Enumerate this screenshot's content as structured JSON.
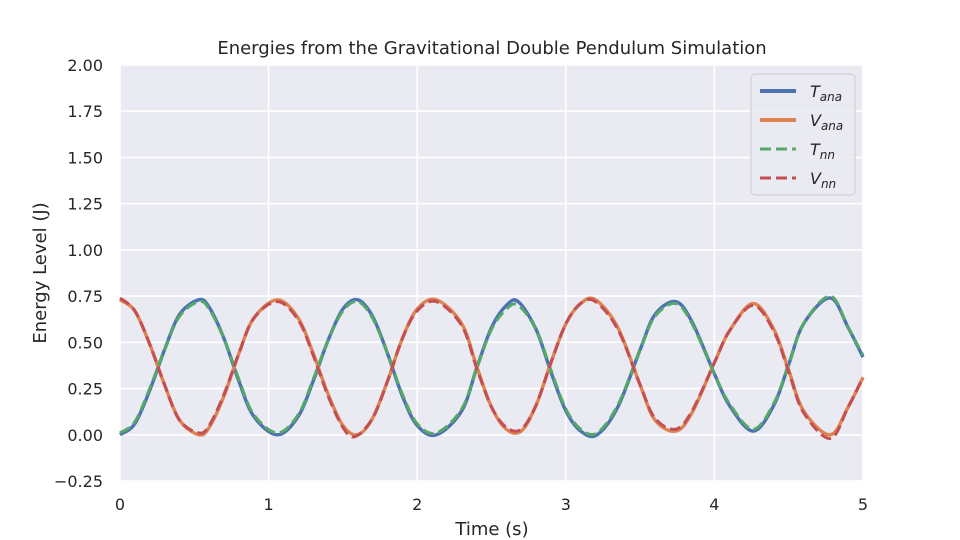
{
  "chart_data": {
    "type": "line",
    "title": "Energies from the Gravitational Double Pendulum Simulation",
    "xlabel": "Time (s)",
    "ylabel": "Energy Level (J)",
    "xlim": [
      0,
      5
    ],
    "ylim": [
      -0.25,
      2.0
    ],
    "x_ticks": [
      0,
      1,
      2,
      3,
      4,
      5
    ],
    "x_tick_labels": [
      "0",
      "1",
      "2",
      "3",
      "4",
      "5"
    ],
    "y_ticks": [
      -0.25,
      0.0,
      0.25,
      0.5,
      0.75,
      1.0,
      1.25,
      1.5,
      1.75,
      2.0
    ],
    "y_tick_labels": [
      "−0.25",
      "0.00",
      "0.25",
      "0.50",
      "0.75",
      "1.00",
      "1.25",
      "1.50",
      "1.75",
      "2.00"
    ],
    "grid": true,
    "legend_position": "top-right",
    "background_color": "#eaeaf2",
    "series": [
      {
        "name": "T_ana",
        "legend_main": "T",
        "legend_sub": "ana",
        "color": "#4c72b0",
        "style": "solid",
        "x": [
          0.0,
          0.1,
          0.2,
          0.3,
          0.4,
          0.53,
          0.6,
          0.7,
          0.8,
          0.9,
          1.06,
          1.2,
          1.3,
          1.4,
          1.5,
          1.6,
          1.7,
          1.8,
          1.9,
          2.0,
          2.13,
          2.3,
          2.4,
          2.5,
          2.6,
          2.68,
          2.8,
          2.9,
          3.0,
          3.1,
          3.21,
          3.35,
          3.5,
          3.6,
          3.74,
          3.85,
          4.0,
          4.1,
          4.26,
          4.4,
          4.5,
          4.6,
          4.78,
          4.9,
          5.0
        ],
        "y": [
          0.0,
          0.06,
          0.24,
          0.46,
          0.65,
          0.73,
          0.69,
          0.52,
          0.29,
          0.1,
          0.0,
          0.1,
          0.29,
          0.51,
          0.68,
          0.73,
          0.64,
          0.44,
          0.21,
          0.05,
          0.0,
          0.13,
          0.36,
          0.58,
          0.7,
          0.72,
          0.57,
          0.34,
          0.13,
          0.02,
          0.0,
          0.15,
          0.46,
          0.65,
          0.72,
          0.61,
          0.33,
          0.16,
          0.02,
          0.16,
          0.38,
          0.6,
          0.74,
          0.58,
          0.42
        ]
      },
      {
        "name": "V_ana",
        "legend_main": "V",
        "legend_sub": "ana",
        "color": "#dd8452",
        "style": "solid",
        "x": [
          0.0,
          0.1,
          0.2,
          0.3,
          0.4,
          0.53,
          0.6,
          0.7,
          0.8,
          0.9,
          1.06,
          1.2,
          1.3,
          1.4,
          1.5,
          1.6,
          1.7,
          1.8,
          1.9,
          2.0,
          2.13,
          2.3,
          2.4,
          2.5,
          2.6,
          2.7,
          2.8,
          2.9,
          3.0,
          3.1,
          3.2,
          3.35,
          3.5,
          3.6,
          3.74,
          3.85,
          4.0,
          4.1,
          4.26,
          4.4,
          4.5,
          4.6,
          4.78,
          4.9,
          5.0
        ],
        "y": [
          0.73,
          0.67,
          0.49,
          0.27,
          0.08,
          0.0,
          0.04,
          0.21,
          0.44,
          0.63,
          0.73,
          0.63,
          0.44,
          0.22,
          0.05,
          0.0,
          0.09,
          0.29,
          0.52,
          0.68,
          0.73,
          0.6,
          0.37,
          0.15,
          0.03,
          0.02,
          0.16,
          0.39,
          0.6,
          0.71,
          0.73,
          0.58,
          0.27,
          0.08,
          0.02,
          0.12,
          0.39,
          0.56,
          0.71,
          0.57,
          0.35,
          0.13,
          0.0,
          0.15,
          0.31
        ]
      },
      {
        "name": "T_nn",
        "legend_main": "T",
        "legend_sub": "nn",
        "color": "#55a868",
        "style": "dashed",
        "x": [
          0.0,
          0.1,
          0.2,
          0.3,
          0.4,
          0.53,
          0.6,
          0.7,
          0.8,
          0.9,
          1.06,
          1.2,
          1.3,
          1.4,
          1.5,
          1.6,
          1.7,
          1.8,
          1.9,
          2.0,
          2.13,
          2.3,
          2.4,
          2.5,
          2.6,
          2.68,
          2.8,
          2.9,
          3.0,
          3.1,
          3.21,
          3.35,
          3.5,
          3.6,
          3.74,
          3.85,
          4.0,
          4.1,
          4.26,
          4.4,
          4.5,
          4.6,
          4.78,
          4.9,
          5.0
        ],
        "y": [
          0.01,
          0.07,
          0.25,
          0.46,
          0.64,
          0.72,
          0.68,
          0.52,
          0.3,
          0.11,
          0.01,
          0.11,
          0.3,
          0.51,
          0.67,
          0.72,
          0.63,
          0.44,
          0.22,
          0.06,
          0.01,
          0.14,
          0.36,
          0.57,
          0.68,
          0.7,
          0.57,
          0.35,
          0.14,
          0.03,
          0.01,
          0.16,
          0.46,
          0.64,
          0.71,
          0.6,
          0.33,
          0.17,
          0.03,
          0.17,
          0.38,
          0.6,
          0.75,
          0.58,
          0.43
        ]
      },
      {
        "name": "V_nn",
        "legend_main": "V",
        "legend_sub": "nn",
        "color": "#c44e52",
        "style": "dashed",
        "x": [
          0.0,
          0.1,
          0.2,
          0.3,
          0.4,
          0.53,
          0.6,
          0.7,
          0.8,
          0.9,
          1.06,
          1.2,
          1.3,
          1.4,
          1.5,
          1.58,
          1.7,
          1.8,
          1.9,
          2.0,
          2.13,
          2.3,
          2.4,
          2.5,
          2.6,
          2.7,
          2.8,
          2.9,
          3.0,
          3.1,
          3.2,
          3.35,
          3.5,
          3.6,
          3.74,
          3.85,
          4.0,
          4.1,
          4.26,
          4.4,
          4.5,
          4.6,
          4.78,
          4.9,
          5.0
        ],
        "y": [
          0.74,
          0.67,
          0.49,
          0.27,
          0.08,
          0.01,
          0.05,
          0.22,
          0.44,
          0.63,
          0.72,
          0.62,
          0.43,
          0.21,
          0.04,
          -0.01,
          0.09,
          0.29,
          0.52,
          0.67,
          0.72,
          0.59,
          0.36,
          0.15,
          0.04,
          0.03,
          0.16,
          0.39,
          0.6,
          0.71,
          0.72,
          0.57,
          0.27,
          0.09,
          0.03,
          0.13,
          0.39,
          0.56,
          0.7,
          0.56,
          0.34,
          0.12,
          -0.02,
          0.15,
          0.31
        ]
      }
    ]
  }
}
